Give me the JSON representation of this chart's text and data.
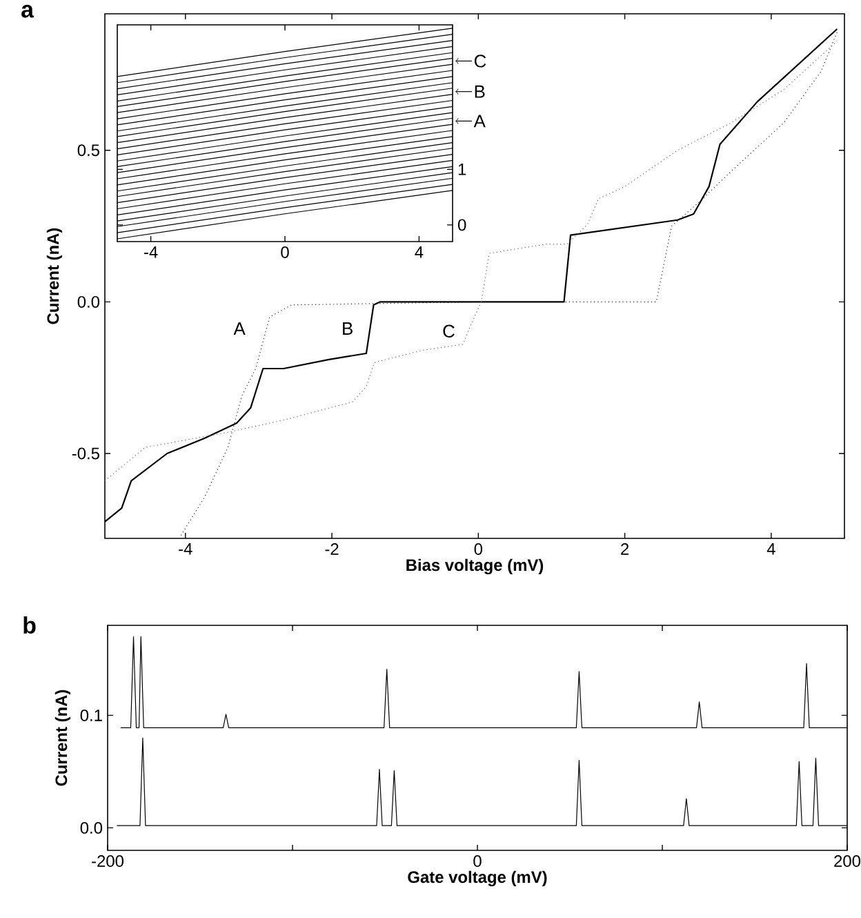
{
  "chart_data": [
    {
      "type": "line",
      "title": "a",
      "xlabel": "Bias voltage (mV)",
      "ylabel": "Current (nA)",
      "xlim": [
        -5.1,
        5
      ],
      "xticks": [
        -4,
        -2,
        0,
        2,
        4
      ],
      "ylim": [
        -0.78,
        0.95
      ],
      "yticks": [
        -0.5,
        {
          "value": 0,
          "label": "0.0"
        },
        0.5
      ],
      "series": [
        {
          "color": "#222222",
          "line_style": "dotted",
          "x": [
            -4.06,
            -3.74,
            -3.42,
            -3.23,
            -3.04,
            -2.85,
            -2.55,
            0,
            2.43,
            2.64,
            3.02,
            3.45,
            4.17,
            4.68,
            4.9
          ],
          "values": [
            -0.77,
            -0.645,
            -0.48,
            -0.31,
            -0.22,
            -0.05,
            -0.01,
            0,
            0,
            0.25,
            0.33,
            0.43,
            0.59,
            0.76,
            0.89
          ]
        },
        {
          "color": "#000000",
          "line_style": "solid",
          "x": [
            -5.1,
            -4.87,
            -4.74,
            -4.25,
            -3.74,
            -3.3,
            -3.11,
            -2.94,
            -2.66,
            -2.04,
            -1.53,
            -1.43,
            -1.34,
            1.17,
            1.26,
            2.72,
            2.94,
            3.15,
            3.3,
            3.81,
            4.9
          ],
          "values": [
            -0.725,
            -0.68,
            -0.59,
            -0.5,
            -0.45,
            -0.4,
            -0.35,
            -0.22,
            -0.22,
            -0.19,
            -0.17,
            -0.01,
            0,
            0,
            0.22,
            0.27,
            0.29,
            0.38,
            0.52,
            0.66,
            0.9
          ]
        },
        {
          "color": "#666666",
          "line_style": "dotted",
          "x": [
            -5.1,
            -4.55,
            -3.42,
            -2.66,
            -1.72,
            -1.53,
            -1.42,
            -0.77,
            -0.21,
            -0.11,
            0.04,
            0.15,
            0.91,
            1.21,
            1.49,
            1.64,
            2.0,
            2.72,
            3.45,
            4.17,
            4.9
          ],
          "values": [
            -0.59,
            -0.48,
            -0.43,
            -0.39,
            -0.33,
            -0.28,
            -0.2,
            -0.16,
            -0.14,
            -0.08,
            0,
            0.16,
            0.19,
            0.19,
            0.255,
            0.34,
            0.38,
            0.5,
            0.59,
            0.7,
            0.86
          ]
        }
      ],
      "annotations": [
        "A",
        "B",
        "C"
      ]
    },
    {
      "type": "line",
      "x": [
        -5,
        0,
        5
      ],
      "xlim": [
        -5,
        5
      ],
      "xticks": [
        -4,
        0,
        4
      ],
      "ylim": [
        -0.3,
        3.6
      ],
      "yticks": [
        0,
        1
      ],
      "series": [
        {
          "color": "#000000",
          "values": [
            -0.25,
            0.2,
            0.62
          ]
        },
        {
          "color": "#000000",
          "values": [
            -0.14,
            0.31,
            0.73
          ]
        },
        {
          "color": "#000000",
          "values": [
            -0.03,
            0.42,
            0.84
          ]
        },
        {
          "color": "#000000",
          "values": [
            0.07,
            0.52,
            0.94
          ]
        },
        {
          "color": "#000000",
          "values": [
            0.18,
            0.63,
            1.05
          ]
        },
        {
          "color": "#000000",
          "values": [
            0.29,
            0.74,
            1.16
          ]
        },
        {
          "color": "#000000",
          "values": [
            0.4,
            0.85,
            1.27
          ]
        },
        {
          "color": "#000000",
          "values": [
            0.51,
            0.96,
            1.38
          ]
        },
        {
          "color": "#000000",
          "values": [
            0.61,
            1.06,
            1.48
          ]
        },
        {
          "color": "#000000",
          "values": [
            0.72,
            1.17,
            1.59
          ]
        },
        {
          "color": "#000000",
          "values": [
            0.83,
            1.28,
            1.7
          ]
        },
        {
          "color": "#000000",
          "values": [
            0.94,
            1.39,
            1.81
          ]
        },
        {
          "color": "#000000",
          "values": [
            1.05,
            1.5,
            1.92
          ]
        },
        {
          "color": "#000000",
          "values": [
            1.15,
            1.6,
            2.02
          ]
        },
        {
          "color": "#000000",
          "values": [
            1.26,
            1.71,
            2.13
          ]
        },
        {
          "color": "#000000",
          "values": [
            1.37,
            1.82,
            2.24
          ]
        },
        {
          "color": "#000000",
          "values": [
            1.48,
            1.93,
            2.35
          ]
        },
        {
          "color": "#000000",
          "values": [
            1.59,
            2.04,
            2.46
          ]
        },
        {
          "color": "#000000",
          "values": [
            1.69,
            2.14,
            2.56
          ]
        },
        {
          "color": "#000000",
          "values": [
            1.8,
            2.25,
            2.67
          ]
        },
        {
          "color": "#000000",
          "values": [
            1.91,
            2.36,
            2.78
          ]
        },
        {
          "color": "#000000",
          "values": [
            2.02,
            2.47,
            2.89
          ]
        },
        {
          "color": "#000000",
          "values": [
            2.13,
            2.58,
            3.0
          ]
        },
        {
          "color": "#000000",
          "values": [
            2.23,
            2.68,
            3.1
          ]
        },
        {
          "color": "#000000",
          "values": [
            2.34,
            2.79,
            3.21
          ]
        },
        {
          "color": "#000000",
          "values": [
            2.45,
            2.9,
            3.32
          ]
        },
        {
          "color": "#000000",
          "values": [
            2.56,
            3.01,
            3.43
          ]
        },
        {
          "color": "#000000",
          "values": [
            2.67,
            3.12,
            3.54
          ]
        }
      ],
      "annotations": [
        "C",
        "B",
        "A"
      ]
    },
    {
      "type": "line",
      "title": "b",
      "xlabel": "Gate voltage (mV)",
      "ylabel": "Current (nA)",
      "xlim": [
        -200,
        200
      ],
      "xticks": [
        -200,
        {
          "value": -100,
          "label": null
        },
        0,
        {
          "value": 100,
          "label": null
        },
        200
      ],
      "ylim": [
        -0.02,
        0.18
      ],
      "yticks": [
        {
          "value": 0,
          "label": "0.0"
        },
        0.1
      ],
      "series": [
        {
          "color": "#000000",
          "x": [
            -193,
            -187.5,
            -186,
            -184.5,
            -183,
            -182,
            -180.5,
            -137.5,
            -136,
            -134.5,
            -50.5,
            -49,
            -47.5,
            53.5,
            55,
            56.5,
            118.5,
            120,
            121.5,
            176.5,
            178,
            179.5,
            200
          ],
          "values": [
            0.089,
            0.089,
            0.17,
            0.089,
            0.089,
            0.17,
            0.089,
            0.089,
            0.101,
            0.089,
            0.089,
            0.141,
            0.089,
            0.089,
            0.139,
            0.089,
            0.089,
            0.112,
            0.089,
            0.089,
            0.146,
            0.089,
            0.089
          ]
        },
        {
          "color": "#000000",
          "x": [
            -195,
            -182.5,
            -181,
            -179.5,
            -54.5,
            -53,
            -51.5,
            -46.5,
            -45,
            -43.5,
            53.5,
            55,
            56.5,
            111.5,
            113,
            114.5,
            172.5,
            174,
            175.5,
            181.5,
            183,
            184.5,
            200
          ],
          "values": [
            0.002,
            0.002,
            0.08,
            0.002,
            0.002,
            0.052,
            0.002,
            0.002,
            0.051,
            0.002,
            0.002,
            0.06,
            0.002,
            0.002,
            0.026,
            0.002,
            0.002,
            0.059,
            0.002,
            0.002,
            0.062,
            0.002,
            0.002
          ]
        }
      ]
    }
  ]
}
